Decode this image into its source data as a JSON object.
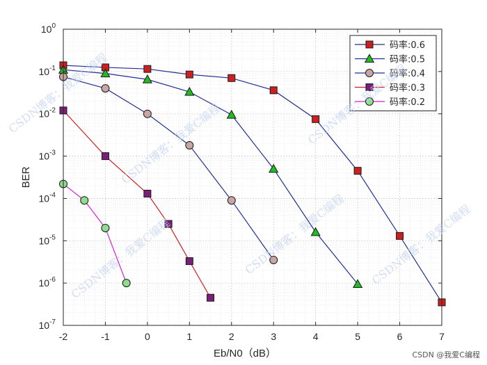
{
  "chart_data": {
    "type": "line",
    "xlabel": "Eb/N0（dB）",
    "ylabel": "BER",
    "xlim": [
      -2,
      7
    ],
    "ylim": [
      1e-07,
      1
    ],
    "yscale": "log",
    "xticks": [
      -2,
      -1,
      0,
      1,
      2,
      3,
      4,
      5,
      6,
      7
    ],
    "yticks": [
      {
        "base": "10",
        "exp": "0"
      },
      {
        "base": "10",
        "exp": "-1"
      },
      {
        "base": "10",
        "exp": "-2"
      },
      {
        "base": "10",
        "exp": "-3"
      },
      {
        "base": "10",
        "exp": "-4"
      },
      {
        "base": "10",
        "exp": "-5"
      },
      {
        "base": "10",
        "exp": "-6"
      },
      {
        "base": "10",
        "exp": "-7"
      }
    ],
    "grid": true,
    "legend_position": "top-right",
    "series": [
      {
        "name": "码率:0.6",
        "marker": "square",
        "marker_color": "#cc1f1f",
        "line_color": "#1f2f8f",
        "x": [
          -2,
          -1,
          0,
          1,
          2,
          3,
          4,
          5,
          6,
          7
        ],
        "y": [
          0.14,
          0.125,
          0.115,
          0.085,
          0.07,
          0.036,
          0.0075,
          0.00045,
          1.3e-05,
          3.5e-07
        ]
      },
      {
        "name": "码率:0.5",
        "marker": "triangle",
        "marker_color": "#22bb22",
        "line_color": "#1f2f8f",
        "x": [
          -2,
          -1,
          0,
          1,
          2,
          3,
          4,
          5
        ],
        "y": [
          0.11,
          0.09,
          0.065,
          0.033,
          0.0095,
          0.0005,
          1.6e-05,
          9.5e-07
        ]
      },
      {
        "name": "码率:0.4",
        "marker": "circle",
        "marker_color": "#c9a6a6",
        "line_color": "#1f2f8f",
        "x": [
          -2,
          -1,
          0,
          1,
          2,
          3
        ],
        "y": [
          0.075,
          0.04,
          0.01,
          0.0018,
          9e-05,
          3.5e-06
        ]
      },
      {
        "name": "码率:0.3",
        "marker": "square",
        "marker_color": "#7a1f7a",
        "line_color": "#cc1f1f",
        "x": [
          -2,
          -1,
          0,
          0.5,
          1,
          1.5
        ],
        "y": [
          0.012,
          0.001,
          0.00013,
          2.5e-05,
          3.3e-06,
          4.5e-07
        ]
      },
      {
        "name": "码率:0.2",
        "marker": "circle",
        "marker_color": "#8fdc8f",
        "line_color": "#d21fd2",
        "x": [
          -2,
          -1.5,
          -1,
          -0.5
        ],
        "y": [
          0.00022,
          9e-05,
          2e-05,
          1e-06
        ]
      }
    ]
  },
  "watermark": {
    "text": "CSDN博客：我爱C编程",
    "credit": "CSDN @我爱C编程"
  }
}
